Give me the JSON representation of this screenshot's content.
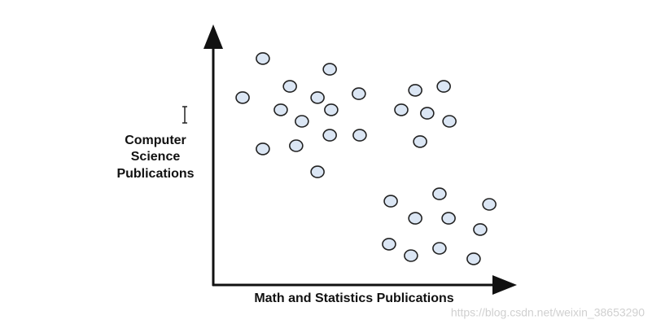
{
  "chart_data": {
    "type": "scatter",
    "x_label": "Math and Statistics Publications",
    "y_label": [
      "Computer",
      "Science",
      "Publications"
    ],
    "watermark": "https://blog.csdn.net/weixin_38653290",
    "xlim": [
      0,
      100
    ],
    "ylim": [
      0,
      100
    ],
    "color": "#dbe6f4",
    "edge_color": "#222222",
    "x": [
      17.4,
      40.9,
      26.9,
      10.3,
      36.6,
      51.1,
      23.7,
      41.4,
      31.1,
      40.9,
      51.4,
      17.4,
      29.1,
      36.6,
      70.9,
      80.9,
      66,
      75.1,
      82.9,
      72.6,
      62.3,
      79.4,
      96.9,
      70.9,
      82.6,
      93.7,
      61.7,
      69.4,
      79.4,
      91.4
    ],
    "values": [
      92.7,
      88.3,
      81.3,
      76.7,
      76.7,
      78.3,
      71.7,
      71.7,
      67,
      61.3,
      61.3,
      55.7,
      57,
      46.3,
      79.7,
      81.3,
      71.7,
      70.3,
      67,
      58.7,
      34.3,
      37.3,
      33,
      27.3,
      27.3,
      22.7,
      16.7,
      12,
      15,
      10.7
    ]
  }
}
